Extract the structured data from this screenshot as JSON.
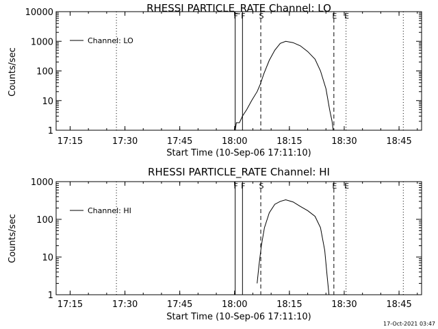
{
  "footer": {
    "timestamp": "17-Oct-2021 03:47"
  },
  "chart_data": [
    {
      "type": "line",
      "title": "RHESSI PARTICLE_RATE Channel: LO",
      "xlabel": "Start Time (10-Sep-06 17:11:10)",
      "ylabel": "Counts/sec",
      "yscale": "log",
      "ylim": [
        1,
        10000
      ],
      "xlim": [
        "17:11:10",
        "18:51:10"
      ],
      "x_ticks": [
        "17:15",
        "17:30",
        "17:45",
        "18:00",
        "18:15",
        "18:30",
        "18:45"
      ],
      "y_ticks": [
        "1",
        "10",
        "100",
        "1000",
        "10000"
      ],
      "legend_position": "top-left",
      "grid": false,
      "markers": [
        {
          "label": "F",
          "x": "18:00:10",
          "style": "solid"
        },
        {
          "label": "F",
          "x": "18:02:10",
          "style": "solid"
        },
        {
          "label": "S",
          "x": "18:07:10",
          "style": "dashed"
        },
        {
          "label": "E",
          "x": "18:27:10",
          "style": "dashed"
        },
        {
          "label": "",
          "x": "17:27:40",
          "style": "dotted"
        },
        {
          "label": "E",
          "x": "18:30:30",
          "style": "dotted"
        },
        {
          "label": "",
          "x": "18:46:10",
          "style": "dotted"
        }
      ],
      "series": [
        {
          "name": "Channel: LO",
          "x": [
            "18:00:10",
            "18:00:30",
            "18:01:20",
            "18:02:10",
            "18:03:20",
            "18:04:40",
            "18:06:10",
            "18:07:00",
            "18:08:00",
            "18:09:30",
            "18:11:00",
            "18:12:30",
            "18:14:00",
            "18:16:00",
            "18:18:00",
            "18:20:00",
            "18:22:00",
            "18:23:30",
            "18:25:00",
            "18:26:00",
            "18:26:40",
            "18:27:00"
          ],
          "y": [
            1,
            1.8,
            1.8,
            3,
            5,
            10,
            20,
            35,
            80,
            230,
            500,
            850,
            1000,
            900,
            700,
            450,
            250,
            100,
            25,
            5,
            2,
            1
          ]
        }
      ]
    },
    {
      "type": "line",
      "title": "RHESSI PARTICLE_RATE Channel: HI",
      "xlabel": "Start Time (10-Sep-06 17:11:10)",
      "ylabel": "Counts/sec",
      "yscale": "log",
      "ylim": [
        1,
        1000
      ],
      "xlim": [
        "17:11:10",
        "18:51:10"
      ],
      "x_ticks": [
        "17:15",
        "17:30",
        "17:45",
        "18:00",
        "18:15",
        "18:30",
        "18:45"
      ],
      "y_ticks": [
        "1",
        "10",
        "100",
        "1000"
      ],
      "legend_position": "top-left",
      "grid": false,
      "markers": [
        {
          "label": "F",
          "x": "18:00:10",
          "style": "solid"
        },
        {
          "label": "F",
          "x": "18:02:10",
          "style": "solid"
        },
        {
          "label": "S",
          "x": "18:07:10",
          "style": "dashed"
        },
        {
          "label": "E",
          "x": "18:27:10",
          "style": "dashed"
        },
        {
          "label": "",
          "x": "17:27:40",
          "style": "dotted"
        },
        {
          "label": "E",
          "x": "18:30:30",
          "style": "dotted"
        },
        {
          "label": "",
          "x": "18:46:10",
          "style": "dotted"
        }
      ],
      "series": [
        {
          "name": "Channel: HI",
          "x": [
            "18:06:10",
            "18:06:40",
            "18:07:20",
            "18:08:10",
            "18:09:30",
            "18:11:00",
            "18:12:30",
            "18:14:00",
            "18:16:00",
            "18:18:00",
            "18:20:00",
            "18:22:00",
            "18:23:30",
            "18:24:40",
            "18:25:20",
            "18:25:50"
          ],
          "y": [
            2,
            6,
            20,
            60,
            150,
            250,
            300,
            330,
            290,
            220,
            170,
            120,
            60,
            15,
            3,
            1
          ]
        }
      ]
    }
  ]
}
